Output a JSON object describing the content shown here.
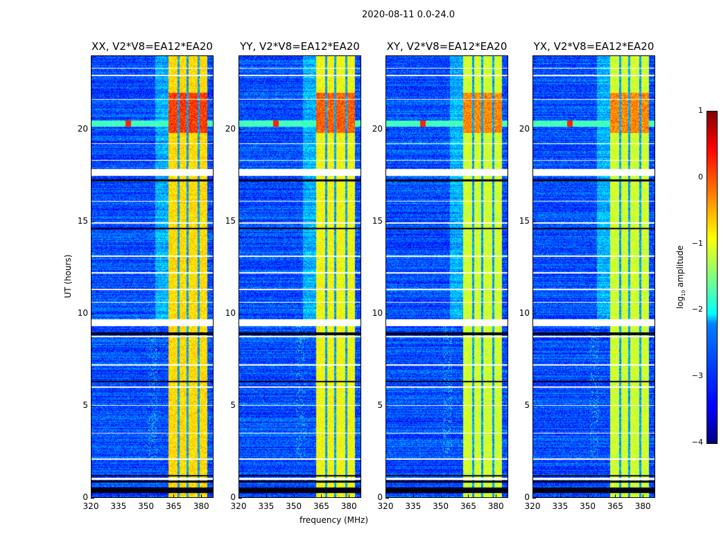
{
  "chart_data": {
    "type": "heatmap",
    "title": "2020-08-11 0.0-24.0",
    "xlabel": "frequency (MHz)",
    "ylabel": "UT (hours)",
    "xlim": [
      320,
      386.7
    ],
    "ylim": [
      0,
      24
    ],
    "xticks": [
      320,
      335,
      350,
      365,
      380
    ],
    "yticks": [
      0,
      5,
      10,
      15,
      20
    ],
    "colormap": "jet",
    "colorbar": {
      "label": "log10 amplitude",
      "label_main": "log",
      "label_sub": "10",
      "label_rest": " amplitude",
      "range": [
        -4,
        1
      ],
      "ticks": [
        1,
        0,
        -1,
        -2,
        -3,
        -4
      ],
      "tick_labels": [
        "1",
        "0",
        "−1",
        "−2",
        "−3",
        "−4"
      ]
    },
    "panels": [
      {
        "title": "XX, V2*V8=EA12*EA20",
        "band_level": -0.7
      },
      {
        "title": "YY, V2*V8=EA12*EA20",
        "band_level": -0.9
      },
      {
        "title": "XY, V2*V8=EA12*EA20",
        "band_level": -1.1
      },
      {
        "title": "YX, V2*V8=EA12*EA20",
        "band_level": -1.1
      }
    ],
    "features": {
      "background_level": -3.0,
      "rfi_band_mhz": [
        362,
        383
      ],
      "band_gaps_mhz": [
        367.5,
        372.5,
        378.5
      ],
      "strong_band_hours": [
        19.8,
        22.0
      ],
      "broadband_line_hours": [
        20.15,
        20.5
      ],
      "vertical_rfi_mhz": [
        351,
        356
      ],
      "vertical_rfi_hours": [
        2.2,
        9.6
      ],
      "flagged_white_hours": [
        [
          9.35,
          9.7
        ],
        [
          17.5,
          17.85
        ],
        [
          8.75,
          8.8
        ],
        [
          1.0,
          1.1
        ],
        [
          12.2,
          12.25
        ],
        [
          13.1,
          13.15
        ],
        [
          14.9,
          14.95
        ],
        [
          16.1,
          16.15
        ],
        [
          18.3,
          18.35
        ],
        [
          19.2,
          19.25
        ],
        [
          21.6,
          21.65
        ],
        [
          22.9,
          22.95
        ],
        [
          23.3,
          23.35
        ],
        [
          6.0,
          6.05
        ],
        [
          5.0,
          5.05
        ],
        [
          3.5,
          3.55
        ],
        [
          2.1,
          2.15
        ],
        [
          7.2,
          7.25
        ],
        [
          10.6,
          10.65
        ],
        [
          11.3,
          11.35
        ]
      ],
      "flagged_black_hours": [
        [
          0.3,
          0.6
        ],
        [
          0.85,
          0.95
        ],
        [
          8.85,
          9.0
        ],
        [
          17.2,
          17.3
        ],
        [
          14.6,
          14.65
        ],
        [
          6.3,
          6.35
        ],
        [
          1.2,
          1.25
        ]
      ]
    }
  }
}
